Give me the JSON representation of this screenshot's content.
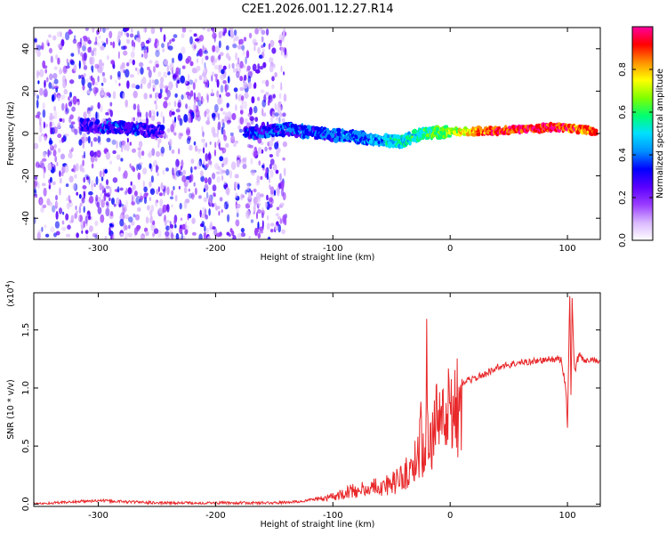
{
  "title": "C2E1.2026.001.12.27.R14",
  "spectrogram": {
    "type": "heatmap",
    "xlabel": "Height of straight line (km)",
    "ylabel": "Frequency (Hz)",
    "xlim": [
      -355,
      128
    ],
    "ylim": [
      -50,
      50
    ],
    "xticks": [
      -300,
      -200,
      -100,
      0,
      100
    ],
    "xtick_labels": [
      "-300",
      "-200",
      "-100",
      "0",
      "100"
    ],
    "yticks": [
      40,
      20,
      0,
      -20,
      -40
    ],
    "ytick_labels": [
      "40",
      "20",
      "0",
      "-20",
      "-40"
    ],
    "colorbar": {
      "label": "Normalized spectral amplitude",
      "range": [
        0,
        1
      ],
      "ticks": [
        0.0,
        0.2,
        0.4,
        0.6,
        0.8
      ],
      "tick_labels": [
        "0.0",
        "0.2",
        "0.4",
        "0.6",
        "0.8"
      ],
      "colors": [
        "#ffffff",
        "#d9b8ff",
        "#9a3cff",
        "#5a00ff",
        "#0000ff",
        "#0090ff",
        "#00e0ff",
        "#00ff70",
        "#80ff00",
        "#ffff00",
        "#ff9000",
        "#ff0000",
        "#ff00a0"
      ]
    },
    "scatter_region_km": [
      -355,
      -140
    ],
    "signal_track": [
      {
        "x": -315,
        "y": 4,
        "amp": 0.25
      },
      {
        "x": -290,
        "y": 3,
        "amp": 0.3
      },
      {
        "x": -265,
        "y": 2,
        "amp": 0.3
      },
      {
        "x": -250,
        "y": 1,
        "amp": 0.25
      },
      {
        "x": -170,
        "y": 0,
        "amp": 0.3
      },
      {
        "x": -140,
        "y": 2,
        "amp": 0.35
      },
      {
        "x": -110,
        "y": 0,
        "amp": 0.35
      },
      {
        "x": -80,
        "y": -2,
        "amp": 0.4
      },
      {
        "x": -60,
        "y": -3,
        "amp": 0.45
      },
      {
        "x": -40,
        "y": -4,
        "amp": 0.5
      },
      {
        "x": -25,
        "y": 0,
        "amp": 0.55
      },
      {
        "x": 0,
        "y": 1,
        "amp": 0.65
      },
      {
        "x": 25,
        "y": 1,
        "amp": 0.85
      },
      {
        "x": 60,
        "y": 2,
        "amp": 0.95
      },
      {
        "x": 90,
        "y": 3,
        "amp": 0.9
      },
      {
        "x": 125,
        "y": 1,
        "amp": 0.85
      }
    ]
  },
  "snr": {
    "type": "line",
    "xlabel": "Height of straight line (km)",
    "ylabel": "SNR (10 * v/v)",
    "scale_label": "(x10",
    "scale_exp": "4",
    "scale_close": ")",
    "xlim": [
      -355,
      128
    ],
    "ylim": [
      -0.02,
      1.82
    ],
    "xticks": [
      -300,
      -200,
      -100,
      0,
      100
    ],
    "xtick_labels": [
      "-300",
      "-200",
      "-100",
      "0",
      "100"
    ],
    "yticks": [
      0.0,
      0.5,
      1.0,
      1.5
    ],
    "ytick_labels": [
      "0.0",
      "0.5",
      "1.0",
      "1.5"
    ],
    "line_color": "#e8282a",
    "x": [
      -355,
      -320,
      -300,
      -250,
      -200,
      -150,
      -130,
      -110,
      -100,
      -90,
      -80,
      -70,
      -60,
      -50,
      -45,
      -40,
      -35,
      -30,
      -27,
      -25,
      -22,
      -20,
      -18,
      -15,
      -10,
      -5,
      0,
      10,
      20,
      30,
      40,
      50,
      60,
      70,
      80,
      90,
      95,
      98,
      100,
      102,
      103,
      104,
      106,
      110,
      115,
      120,
      128
    ],
    "values": [
      0.0,
      0.02,
      0.03,
      0.01,
      0.01,
      0.01,
      0.02,
      0.05,
      0.08,
      0.12,
      0.15,
      0.16,
      0.2,
      0.22,
      0.25,
      0.3,
      0.35,
      0.45,
      0.6,
      0.75,
      0.55,
      1.28,
      0.45,
      0.8,
      0.95,
      1.0,
      1.02,
      1.05,
      1.08,
      1.12,
      1.18,
      1.2,
      1.22,
      1.23,
      1.24,
      1.25,
      1.24,
      1.05,
      0.7,
      1.82,
      0.95,
      1.75,
      1.15,
      1.3,
      1.22,
      1.25,
      1.23
    ]
  }
}
